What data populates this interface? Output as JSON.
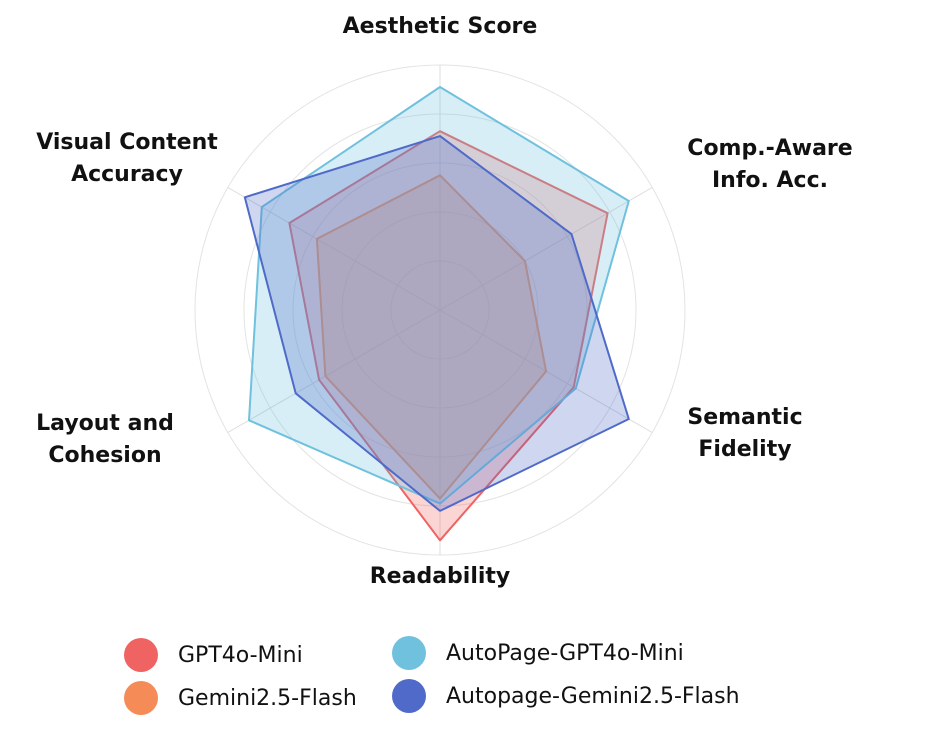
{
  "chart_data": {
    "type": "radar",
    "axes": [
      {
        "label": [
          "Aesthetic Score"
        ]
      },
      {
        "label": [
          "Comp.-Aware",
          "Info.  Acc."
        ]
      },
      {
        "label": [
          "Semantic",
          "Fidelity"
        ]
      },
      {
        "label": [
          "Readability"
        ]
      },
      {
        "label": [
          "Layout and",
          "Cohesion"
        ]
      },
      {
        "label": [
          "Visual Content",
          "Accuracy"
        ]
      }
    ],
    "range": [
      0,
      1
    ],
    "grid": true,
    "grid_levels": 5,
    "legend_position": "bottom",
    "series": [
      {
        "name": "GPT4o-Mini",
        "color": "#ef6363",
        "values": [
          0.73,
          0.79,
          0.63,
          0.94,
          0.57,
          0.71
        ]
      },
      {
        "name": "Gemini2.5-Flash",
        "color": "#f58b57",
        "values": [
          0.55,
          0.4,
          0.5,
          0.77,
          0.54,
          0.58
        ]
      },
      {
        "name": "AutoPage-GPT4o-Mini",
        "color": "#6fc1de",
        "values": [
          0.91,
          0.89,
          0.64,
          0.79,
          0.9,
          0.84
        ]
      },
      {
        "name": "Autopage-Gemini2.5-Flash",
        "color": "#4f6ac8",
        "values": [
          0.71,
          0.62,
          0.89,
          0.82,
          0.68,
          0.92
        ]
      }
    ]
  }
}
